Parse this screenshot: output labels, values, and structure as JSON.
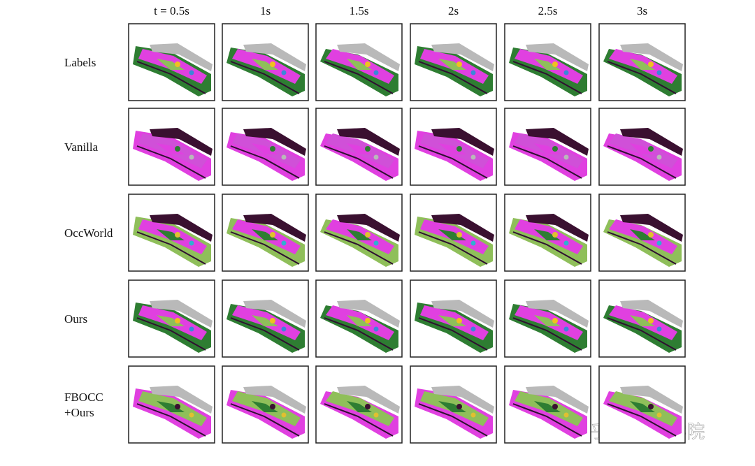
{
  "columns": [
    "t = 0.5s",
    "1s",
    "1.5s",
    "2s",
    "2.5s",
    "3s"
  ],
  "rows": [
    {
      "label": [
        "Labels"
      ]
    },
    {
      "label": [
        "Vanilla"
      ]
    },
    {
      "label": [
        "OccWorld"
      ]
    },
    {
      "label": [
        "Ours"
      ]
    },
    {
      "label": [
        "FBOCC",
        "+Ours"
      ]
    }
  ],
  "watermark": "知乎 @深蓝学院"
}
